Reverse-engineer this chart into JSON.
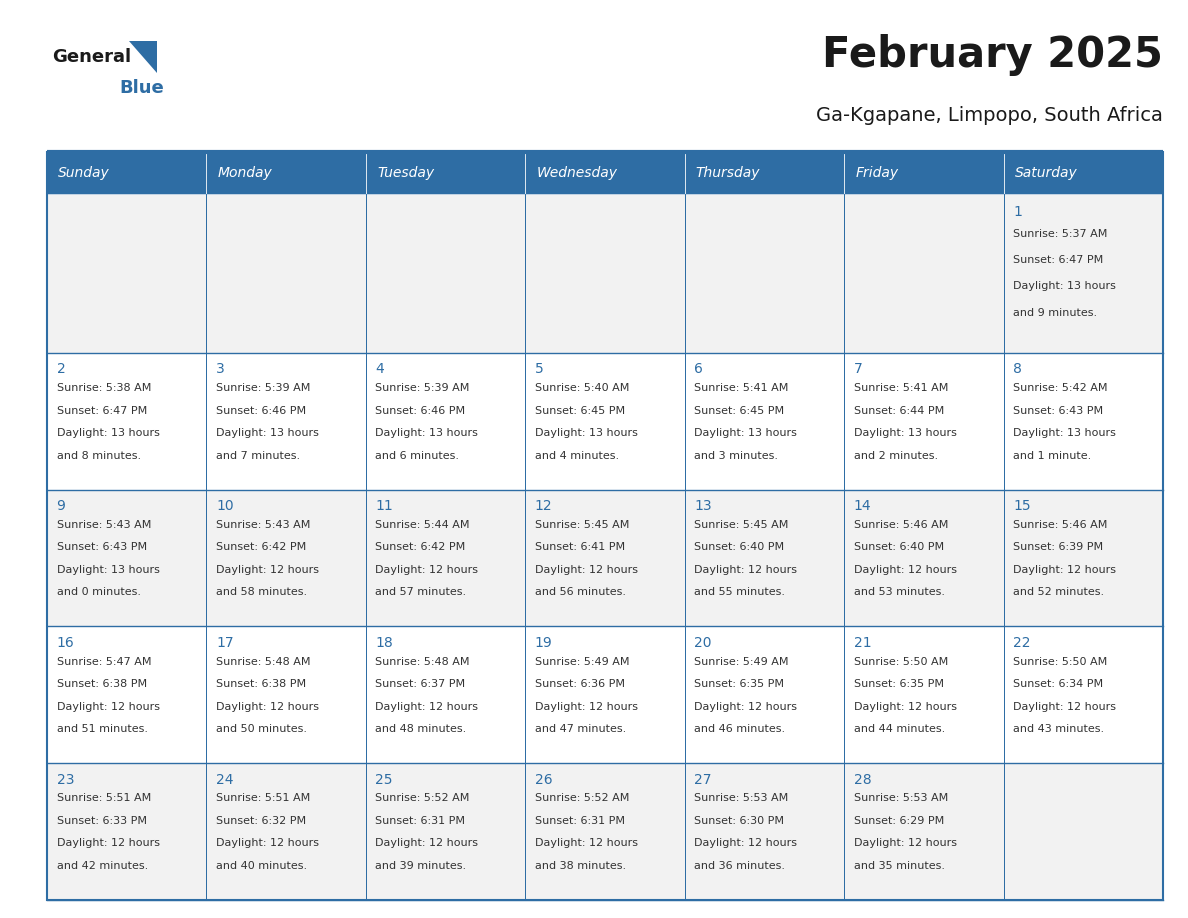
{
  "title": "February 2025",
  "subtitle": "Ga-Kgapane, Limpopo, South Africa",
  "days_of_week": [
    "Sunday",
    "Monday",
    "Tuesday",
    "Wednesday",
    "Thursday",
    "Friday",
    "Saturday"
  ],
  "header_bg": "#2E6DA4",
  "header_text": "#FFFFFF",
  "cell_bg_light": "#F2F2F2",
  "cell_bg_white": "#FFFFFF",
  "border_color": "#2E6DA4",
  "title_color": "#1a1a1a",
  "subtitle_color": "#1a1a1a",
  "day_num_color": "#2E6DA4",
  "cell_text_color": "#333333",
  "logo_general_color": "#1a1a1a",
  "logo_blue_color": "#2E6DA4",
  "logo_triangle_color": "#2E6DA4",
  "calendar_data": [
    [
      null,
      null,
      null,
      null,
      null,
      null,
      {
        "day": 1,
        "sunrise": "5:37 AM",
        "sunset": "6:47 PM",
        "daylight": "13 hours and 9 minutes."
      }
    ],
    [
      {
        "day": 2,
        "sunrise": "5:38 AM",
        "sunset": "6:47 PM",
        "daylight": "13 hours and 8 minutes."
      },
      {
        "day": 3,
        "sunrise": "5:39 AM",
        "sunset": "6:46 PM",
        "daylight": "13 hours and 7 minutes."
      },
      {
        "day": 4,
        "sunrise": "5:39 AM",
        "sunset": "6:46 PM",
        "daylight": "13 hours and 6 minutes."
      },
      {
        "day": 5,
        "sunrise": "5:40 AM",
        "sunset": "6:45 PM",
        "daylight": "13 hours and 4 minutes."
      },
      {
        "day": 6,
        "sunrise": "5:41 AM",
        "sunset": "6:45 PM",
        "daylight": "13 hours and 3 minutes."
      },
      {
        "day": 7,
        "sunrise": "5:41 AM",
        "sunset": "6:44 PM",
        "daylight": "13 hours and 2 minutes."
      },
      {
        "day": 8,
        "sunrise": "5:42 AM",
        "sunset": "6:43 PM",
        "daylight": "13 hours and 1 minute."
      }
    ],
    [
      {
        "day": 9,
        "sunrise": "5:43 AM",
        "sunset": "6:43 PM",
        "daylight": "13 hours and 0 minutes."
      },
      {
        "day": 10,
        "sunrise": "5:43 AM",
        "sunset": "6:42 PM",
        "daylight": "12 hours and 58 minutes."
      },
      {
        "day": 11,
        "sunrise": "5:44 AM",
        "sunset": "6:42 PM",
        "daylight": "12 hours and 57 minutes."
      },
      {
        "day": 12,
        "sunrise": "5:45 AM",
        "sunset": "6:41 PM",
        "daylight": "12 hours and 56 minutes."
      },
      {
        "day": 13,
        "sunrise": "5:45 AM",
        "sunset": "6:40 PM",
        "daylight": "12 hours and 55 minutes."
      },
      {
        "day": 14,
        "sunrise": "5:46 AM",
        "sunset": "6:40 PM",
        "daylight": "12 hours and 53 minutes."
      },
      {
        "day": 15,
        "sunrise": "5:46 AM",
        "sunset": "6:39 PM",
        "daylight": "12 hours and 52 minutes."
      }
    ],
    [
      {
        "day": 16,
        "sunrise": "5:47 AM",
        "sunset": "6:38 PM",
        "daylight": "12 hours and 51 minutes."
      },
      {
        "day": 17,
        "sunrise": "5:48 AM",
        "sunset": "6:38 PM",
        "daylight": "12 hours and 50 minutes."
      },
      {
        "day": 18,
        "sunrise": "5:48 AM",
        "sunset": "6:37 PM",
        "daylight": "12 hours and 48 minutes."
      },
      {
        "day": 19,
        "sunrise": "5:49 AM",
        "sunset": "6:36 PM",
        "daylight": "12 hours and 47 minutes."
      },
      {
        "day": 20,
        "sunrise": "5:49 AM",
        "sunset": "6:35 PM",
        "daylight": "12 hours and 46 minutes."
      },
      {
        "day": 21,
        "sunrise": "5:50 AM",
        "sunset": "6:35 PM",
        "daylight": "12 hours and 44 minutes."
      },
      {
        "day": 22,
        "sunrise": "5:50 AM",
        "sunset": "6:34 PM",
        "daylight": "12 hours and 43 minutes."
      }
    ],
    [
      {
        "day": 23,
        "sunrise": "5:51 AM",
        "sunset": "6:33 PM",
        "daylight": "12 hours and 42 minutes."
      },
      {
        "day": 24,
        "sunrise": "5:51 AM",
        "sunset": "6:32 PM",
        "daylight": "12 hours and 40 minutes."
      },
      {
        "day": 25,
        "sunrise": "5:52 AM",
        "sunset": "6:31 PM",
        "daylight": "12 hours and 39 minutes."
      },
      {
        "day": 26,
        "sunrise": "5:52 AM",
        "sunset": "6:31 PM",
        "daylight": "12 hours and 38 minutes."
      },
      {
        "day": 27,
        "sunrise": "5:53 AM",
        "sunset": "6:30 PM",
        "daylight": "12 hours and 36 minutes."
      },
      {
        "day": 28,
        "sunrise": "5:53 AM",
        "sunset": "6:29 PM",
        "daylight": "12 hours and 35 minutes."
      },
      null
    ]
  ]
}
